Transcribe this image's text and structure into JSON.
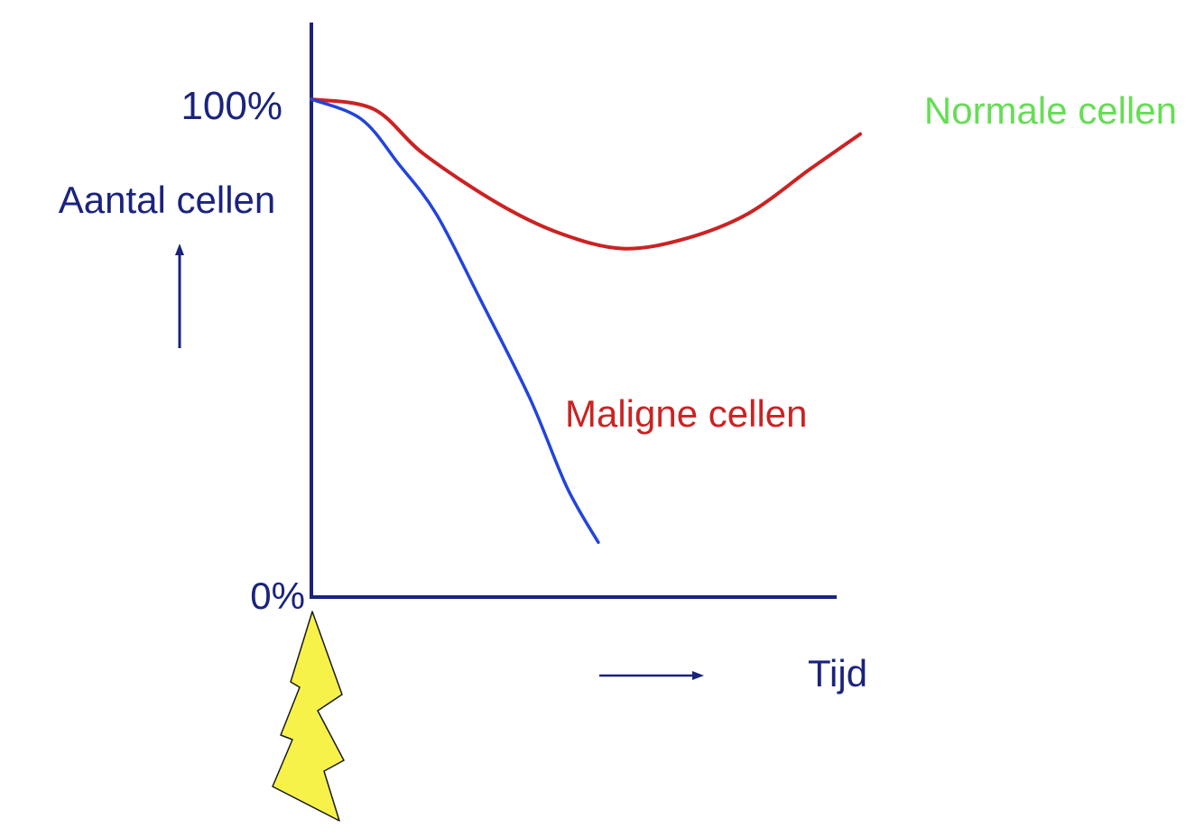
{
  "chart_data": {
    "type": "line",
    "ylabel": "Aantal cellen",
    "xlabel": "Tijd",
    "y_ticks": [
      "100%",
      "0%"
    ],
    "ylim": [
      0,
      100
    ],
    "xlim": [
      0,
      100
    ],
    "grid": false,
    "series": [
      {
        "name": "Normale cellen",
        "label_color": "#66dd55",
        "line_color": "#cc2222",
        "points": [
          [
            0,
            100
          ],
          [
            10,
            98
          ],
          [
            18,
            89
          ],
          [
            30,
            79
          ],
          [
            40,
            73
          ],
          [
            50,
            70
          ],
          [
            60,
            72
          ],
          [
            70,
            77
          ],
          [
            80,
            86
          ],
          [
            88,
            93
          ]
        ]
      },
      {
        "name": "Maligne cellen",
        "label_color": "#cc2222",
        "line_color": "#2244dd",
        "points": [
          [
            0,
            100
          ],
          [
            8,
            96
          ],
          [
            14,
            87
          ],
          [
            20,
            77
          ],
          [
            27,
            60
          ],
          [
            35,
            40
          ],
          [
            41,
            22
          ],
          [
            46,
            11
          ]
        ]
      }
    ]
  },
  "colors": {
    "axis": "#1a237e",
    "text": "#1a237e",
    "lightning": "#f7f24a"
  },
  "icons": {
    "lightning": "lightning-bolt-icon"
  }
}
